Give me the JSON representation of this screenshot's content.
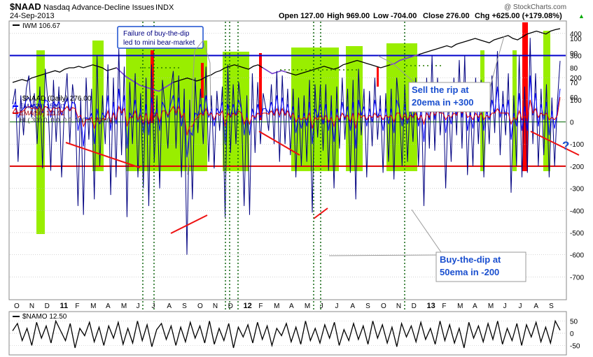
{
  "header": {
    "symbol": "$NAAD",
    "name": "Nasdaq Advance-Decline Issues",
    "exchange": "INDX",
    "date": "24-Sep-2013",
    "open": "Open 127.00",
    "high": "High 969.00",
    "low": "Low -704.00",
    "close": "Close 276.00",
    "change": "Chg +625.00 (+179.08%)",
    "brand": "@ StockCharts.com",
    "up_arrow": "▲"
  },
  "legend": {
    "iwm": "IWM 106.67",
    "naad": "$NAAD (Daily) 276.00",
    "ema20": "EMA(20) 150.31",
    "ema50": "EMA(50) 111.91",
    "hl": "HL( 300.0, 0.0, 0.0, 300.0, 300.0)",
    "namo": "$NAMO 12.50"
  },
  "annotations": {
    "failure": [
      "Failure of buy-the-dip",
      "led to mini bear-market"
    ],
    "sell": [
      "Sell the rip at",
      "20ema in +300"
    ],
    "buy": [
      "Buy-the-dip at",
      "50ema in -200"
    ],
    "question": "?"
  },
  "colors": {
    "green_zone": "#99ee00",
    "red_zone": "#ff0000",
    "naad_line": "#000080",
    "ema20": "#0000ff",
    "ema50": "#dd0000",
    "ref_300": "#0000cc",
    "ref_minus200": "#dd0000",
    "zero_line": "#006600",
    "iwm_line": "#000000",
    "iwm_purple": "#7a3fd6",
    "grid": "#bbbbbb",
    "annotation_box": "#1a4fcf"
  },
  "chart_data": [
    {
      "type": "line",
      "title": "$NAAD Nasdaq Advance-Decline Issues INDX",
      "ylim": [
        -800,
        450
      ],
      "y_ticks": [
        "400",
        "300",
        "200",
        "100",
        "0",
        "-100",
        "-200",
        "-300",
        "-400",
        "-500",
        "-600",
        "-700"
      ],
      "x_ticks": [
        "O",
        "N",
        "D",
        "11",
        "F",
        "M",
        "A",
        "M",
        "J",
        "J",
        "A",
        "S",
        "O",
        "N",
        "D",
        "12",
        "F",
        "M",
        "A",
        "M",
        "J",
        "J",
        "A",
        "S",
        "O",
        "N",
        "D",
        "13",
        "F",
        "M",
        "A",
        "M",
        "J",
        "J",
        "A",
        "S"
      ],
      "reference_lines": [
        300,
        0,
        -200
      ],
      "series": [
        {
          "name": "$NAAD (Daily)",
          "values": [
            80,
            150,
            -180,
            120,
            -60,
            150,
            210,
            20,
            130,
            -100,
            160,
            -210,
            240,
            80,
            -220,
            190,
            -90,
            160,
            -250,
            60,
            220,
            -100,
            170,
            60,
            -380,
            110,
            -420,
            200,
            -80,
            150,
            -350,
            300,
            -200,
            120,
            -100,
            260,
            -330,
            200,
            -250,
            330,
            -150,
            250,
            -430,
            180,
            -100,
            220,
            -250,
            130,
            -300,
            200,
            -380,
            260,
            -180,
            120,
            -300,
            190,
            60,
            -120,
            140,
            230,
            -120,
            210,
            -250,
            150,
            -600,
            100,
            -350,
            200,
            -50,
            150,
            -100,
            250,
            -180,
            120,
            -210,
            140,
            -40,
            160,
            -430,
            260,
            -140,
            170,
            -100,
            180,
            60,
            -380,
            120,
            -420,
            220,
            -140,
            180,
            -100,
            130,
            60,
            -40,
            170,
            -100,
            230,
            -180,
            210,
            -100,
            150,
            -150,
            150,
            -250,
            110,
            -200,
            120,
            -180,
            190,
            -410,
            170,
            -70,
            170,
            -130,
            170,
            -220,
            120,
            -300,
            160,
            -120,
            200,
            -80,
            150,
            -230,
            190,
            -350,
            240,
            -60,
            150,
            -250,
            140,
            -110,
            200,
            -80,
            120,
            -230,
            130,
            -180,
            150,
            -260,
            200,
            60,
            -200,
            170,
            -180,
            110,
            -90,
            200,
            -200,
            130,
            -380,
            200,
            -120,
            300,
            -130,
            200,
            -60,
            150,
            -300,
            120,
            -180,
            200,
            -60,
            280,
            -120,
            300,
            -240,
            90,
            -200,
            200,
            -100,
            190,
            -250,
            120,
            -100,
            210,
            -50,
            320,
            -150,
            140,
            -60,
            220,
            -320,
            120,
            -200,
            300,
            -250,
            160,
            -230,
            380,
            -100,
            220,
            -200,
            150,
            -150,
            170,
            -250,
            110,
            -200,
            90,
            276
          ]
        },
        {
          "name": "EMA(20)",
          "values": [
            60,
            90,
            20,
            50,
            60,
            100,
            110,
            70,
            80,
            60,
            100,
            40,
            100,
            90,
            20,
            90,
            70,
            90,
            30,
            70,
            110,
            50,
            90,
            80,
            -40,
            30,
            -110,
            20,
            10,
            40,
            -100,
            60,
            -10,
            40,
            20,
            120,
            -40,
            90,
            -10,
            150,
            30,
            120,
            -120,
            40,
            20,
            100,
            0,
            60,
            -50,
            80,
            -60,
            110,
            20,
            60,
            -40,
            90,
            60,
            20,
            80,
            120,
            30,
            110,
            -20,
            60,
            -160,
            -40,
            -60,
            40,
            30,
            80,
            30,
            120,
            20,
            60,
            -20,
            60,
            40,
            90,
            -100,
            80,
            20,
            80,
            30,
            100,
            60,
            -60,
            40,
            -60,
            60,
            10,
            80,
            20,
            60,
            60,
            40,
            90,
            30,
            120,
            20,
            110,
            30,
            80,
            10,
            70,
            -50,
            30,
            -30,
            40,
            -20,
            90,
            -100,
            60,
            20,
            80,
            -10,
            80,
            -40,
            50,
            -90,
            60,
            0,
            90,
            10,
            70,
            -40,
            90,
            -120,
            100,
            30,
            70,
            -20,
            60,
            0,
            100,
            20,
            60,
            -40,
            60,
            -10,
            60,
            -50,
            100,
            60,
            -20,
            80,
            -10,
            50,
            20,
            90,
            -20,
            60,
            -90,
            80,
            10,
            140,
            10,
            100,
            40,
            80,
            -50,
            50,
            -10,
            90,
            30,
            140,
            20,
            140,
            -40,
            40,
            -30,
            90,
            0,
            90,
            -40,
            50,
            10,
            100,
            40,
            160,
            20,
            80,
            30,
            100,
            -80,
            40,
            -20,
            130,
            -40,
            70,
            -40,
            210,
            30,
            130,
            -20,
            80,
            10,
            90,
            -60,
            50,
            -30,
            50,
            150
          ]
        },
        {
          "name": "EMA(50)",
          "values": [
            40,
            60,
            40,
            45,
            50,
            65,
            70,
            60,
            65,
            55,
            70,
            50,
            70,
            65,
            45,
            65,
            60,
            65,
            45,
            55,
            70,
            50,
            65,
            60,
            20,
            30,
            -20,
            10,
            10,
            20,
            -30,
            20,
            0,
            15,
            10,
            50,
            0,
            40,
            10,
            70,
            40,
            60,
            -20,
            20,
            20,
            50,
            10,
            30,
            -10,
            40,
            -10,
            50,
            20,
            40,
            0,
            50,
            50,
            30,
            50,
            70,
            40,
            70,
            20,
            40,
            -60,
            -20,
            -20,
            10,
            20,
            40,
            30,
            60,
            30,
            40,
            10,
            40,
            30,
            50,
            -20,
            40,
            20,
            40,
            30,
            50,
            40,
            -10,
            20,
            -10,
            30,
            20,
            40,
            30,
            40,
            40,
            35,
            50,
            30,
            60,
            30,
            60,
            30,
            50,
            20,
            40,
            0,
            20,
            10,
            20,
            10,
            40,
            -30,
            20,
            10,
            30,
            10,
            30,
            0,
            20,
            -20,
            30,
            10,
            40,
            20,
            30,
            0,
            40,
            -30,
            40,
            20,
            30,
            10,
            30,
            20,
            40,
            20,
            30,
            10,
            30,
            20,
            30,
            0,
            40,
            40,
            10,
            40,
            10,
            30,
            20,
            40,
            10,
            30,
            -10,
            40,
            20,
            60,
            30,
            50,
            40,
            40,
            10,
            30,
            20,
            40,
            30,
            60,
            40,
            60,
            20,
            30,
            10,
            40,
            20,
            40,
            10,
            30,
            20,
            40,
            40,
            60,
            40,
            40,
            40,
            40,
            -10,
            20,
            10,
            50,
            10,
            30,
            10,
            100,
            40,
            60,
            20,
            40,
            30,
            40,
            10,
            20,
            10,
            30,
            111.91
          ]
        },
        {
          "name": "IWM",
          "ylim": [
            50,
            110
          ],
          "values": [
            70,
            71,
            72,
            71,
            73,
            74,
            75,
            76,
            77,
            78,
            77,
            79,
            80,
            80,
            81,
            80,
            81,
            82,
            81,
            80,
            78,
            79,
            80,
            77,
            74,
            72,
            70,
            68,
            67,
            66,
            65,
            64,
            66,
            68,
            70,
            71,
            72,
            73,
            72,
            71,
            72,
            74,
            75,
            77,
            78,
            80,
            81,
            82,
            81,
            80,
            79,
            81,
            82,
            80,
            78,
            76,
            77,
            78,
            77,
            76,
            75,
            76,
            77,
            78,
            79,
            80,
            81,
            80,
            79,
            80,
            82,
            83,
            84,
            85,
            84,
            83,
            82,
            81,
            80,
            81,
            82,
            83,
            85,
            86,
            87,
            88,
            89,
            90,
            91,
            92,
            93,
            94,
            95,
            94,
            96,
            97,
            98,
            99,
            100,
            99,
            98,
            97,
            99,
            100,
            101,
            102,
            100,
            99,
            101,
            103,
            104,
            105,
            104,
            103,
            105,
            106,
            106.67
          ]
        },
        {
          "name": "$NAMO",
          "ylim": [
            -80,
            80
          ],
          "values": [
            10,
            40,
            -30,
            20,
            -50,
            45,
            -20,
            30,
            -40,
            50,
            10,
            -30,
            40,
            -60,
            20,
            -10,
            45,
            -35,
            25,
            -50,
            30,
            -20,
            45,
            -45,
            20,
            -40,
            50,
            -30,
            35,
            -55,
            15,
            40,
            -25,
            30,
            -50,
            25,
            -35,
            45,
            -20,
            30,
            -40,
            50,
            -45,
            20,
            -30,
            40,
            -60,
            25,
            -15,
            35,
            -40,
            45,
            -25,
            30,
            -50,
            20,
            -10,
            40,
            -35,
            25,
            -45,
            50,
            -30,
            20,
            -40,
            35,
            -20,
            45,
            -50,
            15,
            -30,
            40,
            -25,
            30,
            -45,
            50,
            -20,
            35,
            -40,
            25,
            -55,
            40,
            -15,
            30,
            -35,
            45,
            -25,
            20,
            -45,
            50,
            -30,
            35,
            -40,
            20,
            -60,
            45,
            -20,
            30,
            -35,
            40,
            -25,
            50,
            -45,
            20,
            -30,
            40,
            -50,
            35,
            -15,
            45,
            -35,
            25,
            -40,
            50,
            12.5
          ]
        }
      ]
    }
  ]
}
